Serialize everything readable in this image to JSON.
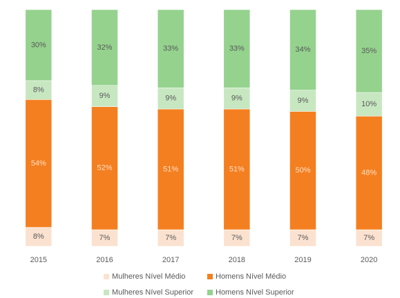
{
  "chart_data": {
    "type": "bar",
    "stacked": true,
    "categories": [
      "2015",
      "2016",
      "2017",
      "2018",
      "2019",
      "2020"
    ],
    "series": [
      {
        "name": "Mulheres Nível Médio",
        "color": "#fbe2d0",
        "values": [
          8,
          7,
          7,
          7,
          7,
          7
        ],
        "value_labels": [
          "8%",
          "7%",
          "7%",
          "7%",
          "7%",
          "7%"
        ]
      },
      {
        "name": "Homens Nível Médio",
        "color": "#f47f20",
        "values": [
          54,
          52,
          51,
          51,
          50,
          48
        ],
        "value_labels": [
          "54%",
          "52%",
          "51%",
          "51%",
          "50%",
          "48%"
        ]
      },
      {
        "name": "Mulheres Nível Superior",
        "color": "#c7e7c1",
        "values": [
          8,
          9,
          9,
          9,
          9,
          10
        ],
        "value_labels": [
          "8%",
          "9%",
          "9%",
          "9%",
          "9%",
          "10%"
        ]
      },
      {
        "name": "Homens Nível Superior",
        "color": "#95d28e",
        "values": [
          30,
          32,
          33,
          33,
          34,
          35
        ],
        "value_labels": [
          "30%",
          "32%",
          "33%",
          "33%",
          "34%",
          "35%"
        ]
      }
    ],
    "legend": "bottom"
  }
}
